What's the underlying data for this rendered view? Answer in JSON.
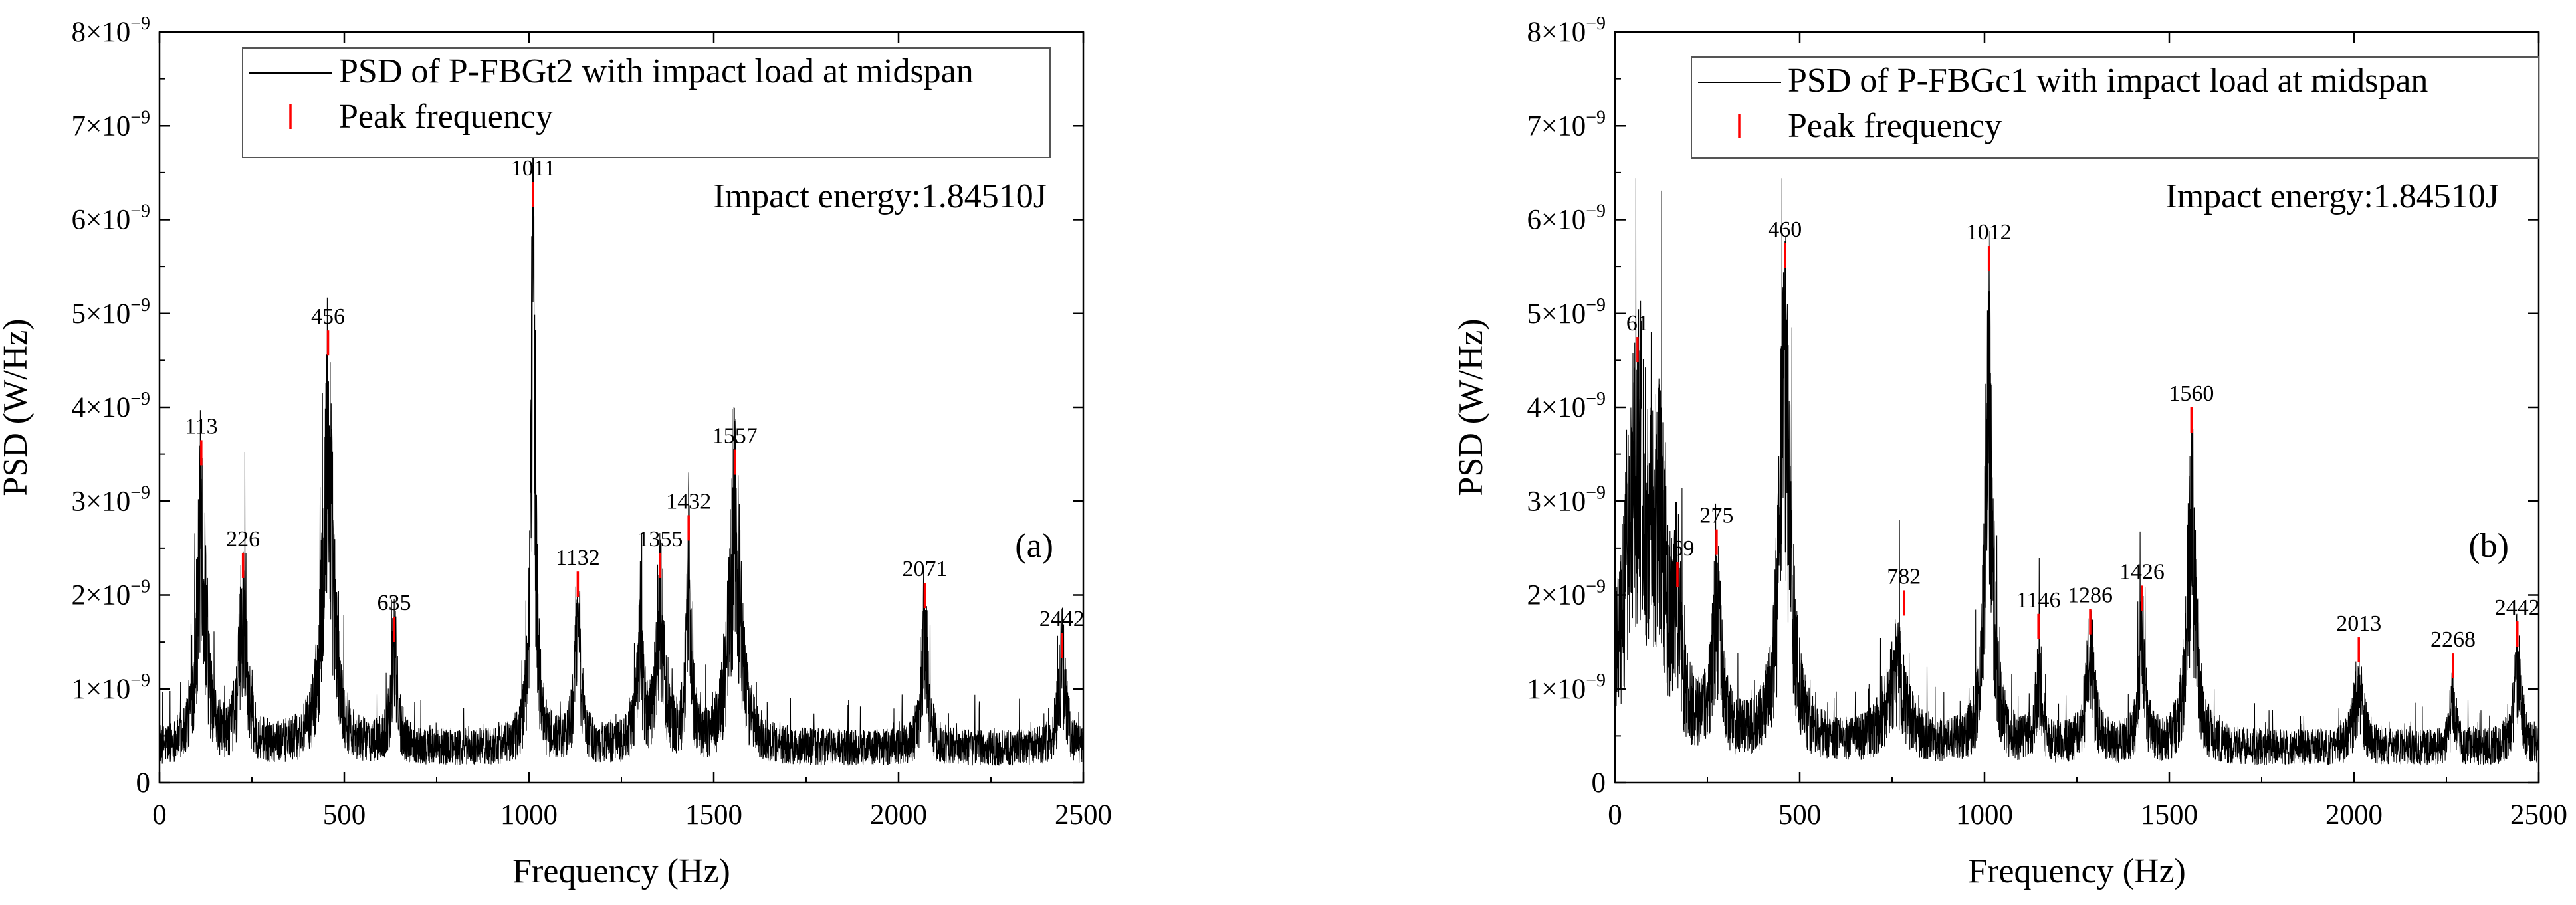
{
  "chart_data": [
    {
      "type": "line",
      "panel_label": "(a)",
      "xlabel": "Frequency (Hz)",
      "ylabel": "PSD (W/Hz)",
      "xlim": [
        0,
        2500
      ],
      "ylim": [
        0,
        8e-09
      ],
      "x_ticks": [
        0,
        500,
        1000,
        1500,
        2000,
        2500
      ],
      "x_tick_labels": [
        "0",
        "500",
        "1000",
        "1500",
        "2000",
        "2500"
      ],
      "y_ticks": [
        0,
        1e-09,
        2e-09,
        3e-09,
        4e-09,
        5e-09,
        6e-09,
        7e-09,
        8e-09
      ],
      "y_tick_labels": [
        "0",
        "1×10",
        "2×10",
        "3×10",
        "4×10",
        "5×10",
        "6×10",
        "7×10",
        "8×10"
      ],
      "y_tick_exponent": "−9",
      "annotation": "Impact energy:1.84510J",
      "legend": {
        "position": "top-right",
        "entries": [
          "PSD of P-FBGt2 with impact load at midspan",
          "Peak frequency"
        ]
      },
      "baseline": 5e-10,
      "series": [
        {
          "name": "PSD of P-FBGt2 with impact load at midspan",
          "resonances": [
            {
              "f": 113,
              "amp": 3.2e-09,
              "width": 14
            },
            {
              "f": 226,
              "amp": 2e-09,
              "width": 12
            },
            {
              "f": 456,
              "amp": 4.45e-09,
              "width": 16
            },
            {
              "f": 635,
              "amp": 1.35e-09,
              "width": 10
            },
            {
              "f": 1011,
              "amp": 6.1e-09,
              "width": 8
            },
            {
              "f": 1132,
              "amp": 1.8e-09,
              "width": 10
            },
            {
              "f": 1300,
              "amp": 1.2e-09,
              "width": 12
            },
            {
              "f": 1355,
              "amp": 2e-09,
              "width": 12
            },
            {
              "f": 1432,
              "amp": 2.4e-09,
              "width": 8
            },
            {
              "f": 1557,
              "amp": 3.2e-09,
              "width": 18
            },
            {
              "f": 2071,
              "amp": 1.7e-09,
              "width": 10
            },
            {
              "f": 2442,
              "amp": 1.25e-09,
              "width": 12
            }
          ]
        }
      ],
      "peaks": [
        {
          "f": 113,
          "value": 3.65e-09,
          "label": "113"
        },
        {
          "f": 226,
          "value": 2.45e-09,
          "label": "226"
        },
        {
          "f": 456,
          "value": 4.82e-09,
          "label": "456"
        },
        {
          "f": 635,
          "value": 1.77e-09,
          "label": "635"
        },
        {
          "f": 1011,
          "value": 6.4e-09,
          "label": "1011"
        },
        {
          "f": 1132,
          "value": 2.25e-09,
          "label": "1132"
        },
        {
          "f": 1355,
          "value": 2.45e-09,
          "label": "1355"
        },
        {
          "f": 1432,
          "value": 2.85e-09,
          "label": "1432"
        },
        {
          "f": 1557,
          "value": 3.55e-09,
          "label": "1557"
        },
        {
          "f": 2071,
          "value": 2.13e-09,
          "label": "2071"
        },
        {
          "f": 2442,
          "value": 1.6e-09,
          "label": "2442"
        }
      ]
    },
    {
      "type": "line",
      "panel_label": "(b)",
      "xlabel": "Frequency (Hz)",
      "ylabel": "PSD (W/Hz)",
      "xlim": [
        0,
        2500
      ],
      "ylim": [
        0,
        8e-09
      ],
      "x_ticks": [
        0,
        500,
        1000,
        1500,
        2000,
        2500
      ],
      "x_tick_labels": [
        "0",
        "500",
        "1000",
        "1500",
        "2000",
        "2500"
      ],
      "y_ticks": [
        0,
        1e-09,
        2e-09,
        3e-09,
        4e-09,
        5e-09,
        6e-09,
        7e-09,
        8e-09
      ],
      "y_tick_labels": [
        "0",
        "1×10",
        "2×10",
        "3×10",
        "4×10",
        "5×10",
        "6×10",
        "7×10",
        "8×10"
      ],
      "y_tick_exponent": "−9",
      "annotation": "Impact energy:1.84510J",
      "legend": {
        "position": "top-right",
        "entries": [
          "PSD of P-FBGc1 with impact load at midspan",
          "Peak frequency"
        ]
      },
      "baseline": 5e-10,
      "series": [
        {
          "name": "PSD of P-FBGc1 with impact load at midspan",
          "resonances": [
            {
              "f": 61,
              "amp": 3.9e-09,
              "width": 40
            },
            {
              "f": 120,
              "amp": 2.2e-09,
              "width": 25
            },
            {
              "f": 169,
              "amp": 1.45e-09,
              "width": 10
            },
            {
              "f": 275,
              "amp": 1.85e-09,
              "width": 14
            },
            {
              "f": 460,
              "amp": 5e-09,
              "width": 18
            },
            {
              "f": 760,
              "amp": 1.1e-09,
              "width": 30
            },
            {
              "f": 1012,
              "amp": 5.1e-09,
              "width": 12
            },
            {
              "f": 1146,
              "amp": 9e-10,
              "width": 10
            },
            {
              "f": 1286,
              "amp": 1.25e-09,
              "width": 14
            },
            {
              "f": 1426,
              "amp": 1.45e-09,
              "width": 10
            },
            {
              "f": 1560,
              "amp": 3.2e-09,
              "width": 14
            },
            {
              "f": 2013,
              "amp": 9e-10,
              "width": 14
            },
            {
              "f": 2268,
              "amp": 6e-10,
              "width": 10
            },
            {
              "f": 2442,
              "amp": 1.15e-09,
              "width": 12
            }
          ]
        }
      ],
      "peaks": [
        {
          "f": 61,
          "value": 4.75e-09,
          "label": "61"
        },
        {
          "f": 169,
          "value": 2.35e-09,
          "label": "169"
        },
        {
          "f": 275,
          "value": 2.7e-09,
          "label": "275"
        },
        {
          "f": 460,
          "value": 5.75e-09,
          "label": "460"
        },
        {
          "f": 782,
          "value": 2.05e-09,
          "label": "782"
        },
        {
          "f": 1012,
          "value": 5.72e-09,
          "label": "1012"
        },
        {
          "f": 1146,
          "value": 1.8e-09,
          "label": "1146"
        },
        {
          "f": 1286,
          "value": 1.85e-09,
          "label": "1286"
        },
        {
          "f": 1426,
          "value": 2.1e-09,
          "label": "1426"
        },
        {
          "f": 1560,
          "value": 4e-09,
          "label": "1560"
        },
        {
          "f": 2013,
          "value": 1.55e-09,
          "label": "2013"
        },
        {
          "f": 2268,
          "value": 1.38e-09,
          "label": "2268"
        },
        {
          "f": 2442,
          "value": 1.72e-09,
          "label": "2442"
        }
      ]
    }
  ],
  "colors": {
    "series": "#000000",
    "peak_marker": "#ff0000",
    "axes": "#000000",
    "background": "#ffffff"
  }
}
